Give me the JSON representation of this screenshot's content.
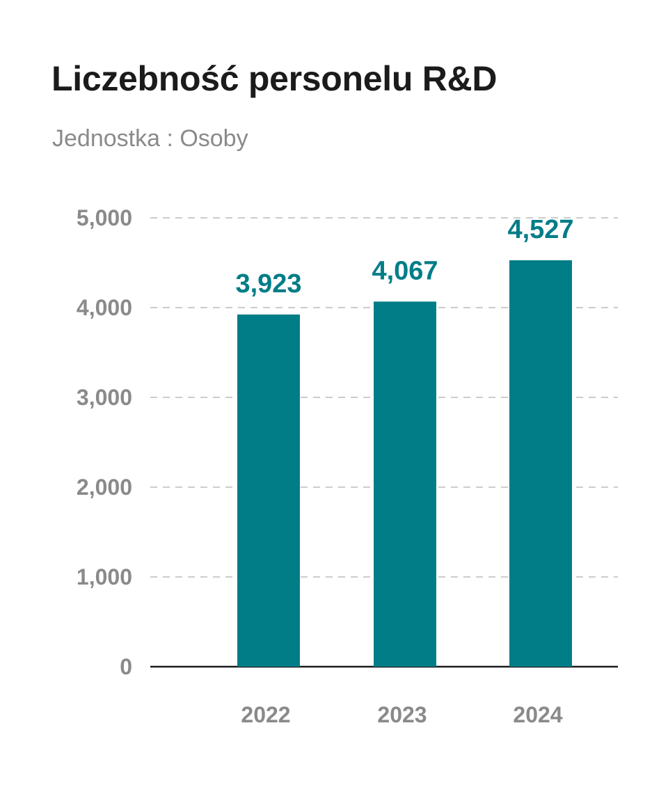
{
  "title": "Liczebność personelu R&D",
  "subtitle": "Jednostka : Osoby",
  "colors": {
    "bar": "#007d87",
    "value_label": "#007d87",
    "tick": "#8a8a8a",
    "grid": "#cccccc",
    "axis": "#1b1b1b"
  },
  "chart_data": {
    "type": "bar",
    "categories": [
      "2022",
      "2023",
      "2024"
    ],
    "values": [
      3923,
      4067,
      4527
    ],
    "value_labels": [
      "3,923",
      "4,067",
      "4,527"
    ],
    "yticks": [
      0,
      1000,
      2000,
      3000,
      4000,
      5000
    ],
    "ytick_labels": [
      "0",
      "1,000",
      "2,000",
      "3,000",
      "4,000",
      "5,000"
    ],
    "ylim": [
      0,
      5000
    ],
    "grid": "horizontal dashed",
    "xlabel": "",
    "ylabel": ""
  }
}
